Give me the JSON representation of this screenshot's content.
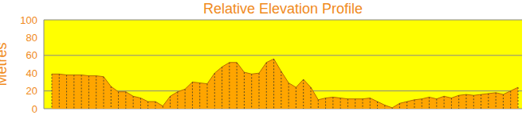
{
  "chart_data": {
    "type": "area",
    "title": "Relative Elevation Profile",
    "y_label": "Metres",
    "categories": [
      null,
      null,
      null,
      null,
      null,
      null,
      null,
      null,
      null,
      null,
      null,
      null,
      null,
      null,
      null,
      null,
      null,
      null,
      null,
      null,
      null,
      null,
      null,
      null,
      null,
      null,
      null,
      null,
      null,
      null,
      null,
      null,
      null,
      null,
      null,
      null,
      null,
      null,
      null,
      null,
      null,
      null,
      null,
      null,
      null,
      null,
      null,
      null,
      null,
      null,
      null,
      null,
      null,
      null,
      null,
      null,
      null,
      null,
      null,
      null,
      null,
      null,
      null,
      null
    ],
    "values": [
      39,
      39,
      38,
      38,
      38,
      37,
      37,
      36,
      25,
      19,
      19,
      14,
      12,
      8,
      8,
      3,
      14,
      19,
      22,
      30,
      29,
      28,
      40,
      47,
      52,
      52,
      41,
      39,
      40,
      52,
      56,
      42,
      29,
      24,
      33,
      24,
      10,
      12,
      13,
      12,
      11,
      11,
      11,
      12,
      8,
      4,
      1,
      6,
      8,
      10,
      11,
      13,
      11,
      14,
      12,
      15,
      16,
      15,
      16,
      17,
      18,
      16,
      20,
      24
    ],
    "color": "#ffa500",
    "ylim": [
      0,
      100
    ],
    "yticks": [
      0,
      20,
      40,
      60,
      80,
      100
    ],
    "grid": true,
    "tick_labels": "y"
  }
}
